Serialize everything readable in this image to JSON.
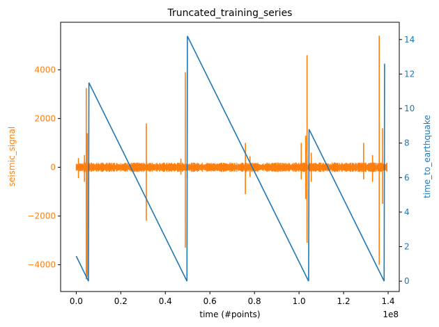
{
  "chart_data": {
    "type": "line",
    "title": "Truncated_training_series",
    "xlabel": "time (#points)",
    "x_offset_label": "1e8",
    "ylabel_left": "seismic_signal",
    "ylabel_right": "time_to_earthquake",
    "xlim": [
      -0.07,
      1.45
    ],
    "ylim_left": [
      -5100,
      5950
    ],
    "ylim_right": [
      -0.6,
      15.0
    ],
    "x_ticks": [
      0.0,
      0.2,
      0.4,
      0.6,
      0.8,
      1.0,
      1.2,
      1.4
    ],
    "x_tick_labels": [
      "0.0",
      "0.2",
      "0.4",
      "0.6",
      "0.8",
      "1.0",
      "1.2",
      "1.4"
    ],
    "left_ticks": [
      -4000,
      -2000,
      0,
      2000,
      4000
    ],
    "left_tick_labels": [
      "−4000",
      "−2000",
      "0",
      "2000",
      "4000"
    ],
    "right_ticks": [
      0,
      2,
      4,
      6,
      8,
      10,
      12,
      14
    ],
    "right_tick_labels": [
      "0",
      "2",
      "4",
      "6",
      "8",
      "10",
      "12",
      "14"
    ],
    "grid": false,
    "colors": {
      "seismic_signal": "#ff7f0e",
      "time_to_earthquake": "#1f77b4",
      "axes": "#000000"
    },
    "series": [
      {
        "name": "seismic_signal",
        "axis": "left",
        "noise_band": [
          -150,
          150
        ],
        "spikes": [
          {
            "x": 0.0451,
            "min": -4600,
            "max": 3250
          },
          {
            "x": 0.05,
            "min": -4500,
            "max": 1400
          },
          {
            "x": 0.01,
            "min": -450,
            "max": 380
          },
          {
            "x": 0.037,
            "min": -600,
            "max": 500
          },
          {
            "x": 0.3147,
            "min": -2200,
            "max": 1800
          },
          {
            "x": 0.4898,
            "min": -3300,
            "max": 3900
          },
          {
            "x": 0.47,
            "min": -300,
            "max": 350
          },
          {
            "x": 0.7594,
            "min": -1100,
            "max": 1000
          },
          {
            "x": 0.78,
            "min": -400,
            "max": 450
          },
          {
            "x": 1.036,
            "min": -3100,
            "max": 4600
          },
          {
            "x": 1.03,
            "min": -1300,
            "max": 1300
          },
          {
            "x": 1.01,
            "min": -500,
            "max": 1000
          },
          {
            "x": 1.055,
            "min": -600,
            "max": 600
          },
          {
            "x": 1.36,
            "min": -4000,
            "max": 5400
          },
          {
            "x": 1.375,
            "min": -1500,
            "max": 1600
          },
          {
            "x": 1.29,
            "min": -500,
            "max": 1000
          },
          {
            "x": 1.33,
            "min": -600,
            "max": 500
          }
        ]
      },
      {
        "name": "time_to_earthquake",
        "axis": "right",
        "x": [
          0.0,
          0.055,
          0.057,
          0.497,
          0.499,
          1.043,
          1.045,
          1.382,
          1.384
        ],
        "y": [
          1.45,
          0.0,
          11.5,
          0.0,
          14.2,
          0.0,
          8.8,
          0.0,
          12.6
        ]
      }
    ]
  }
}
